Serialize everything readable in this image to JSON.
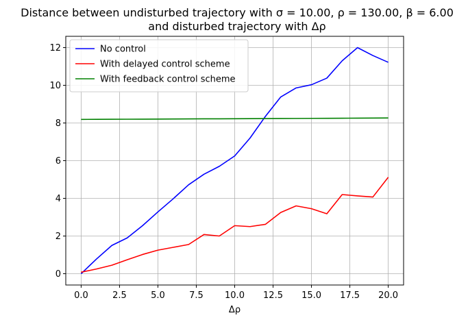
{
  "chart_data": {
    "type": "line",
    "title": "Distance between undisturbed trajectory with σ = 10.00, ρ = 130.00, β = 6.00",
    "subtitle": "and disturbed trajectory with Δρ",
    "xlabel": "Δρ",
    "ylabel": "",
    "xlim": [
      -1.0,
      21.0
    ],
    "ylim": [
      -0.6,
      12.6
    ],
    "xticks": [
      0.0,
      2.5,
      5.0,
      7.5,
      10.0,
      12.5,
      15.0,
      17.5,
      20.0
    ],
    "xtick_labels": [
      "0.0",
      "2.5",
      "5.0",
      "7.5",
      "10.0",
      "12.5",
      "15.0",
      "17.5",
      "20.0"
    ],
    "yticks": [
      0,
      2,
      4,
      6,
      8,
      10,
      12
    ],
    "ytick_labels": [
      "0",
      "2",
      "4",
      "6",
      "8",
      "10",
      "12"
    ],
    "grid": true,
    "legend_position": "top-left",
    "x": [
      0,
      1,
      2,
      3,
      4,
      5,
      6,
      7,
      8,
      9,
      10,
      11,
      12,
      13,
      14,
      15,
      16,
      17,
      18,
      19,
      20
    ],
    "series": [
      {
        "name": "No control",
        "color": "#0000ff",
        "values": [
          0.0,
          0.78,
          1.5,
          1.9,
          2.55,
          3.28,
          3.98,
          4.72,
          5.28,
          5.7,
          6.25,
          7.2,
          8.35,
          9.38,
          9.86,
          10.03,
          10.38,
          11.3,
          12.0,
          11.58,
          11.22
        ]
      },
      {
        "name": "With delayed control scheme",
        "color": "#ff0000",
        "values": [
          0.08,
          0.25,
          0.45,
          0.74,
          1.02,
          1.25,
          1.4,
          1.55,
          2.08,
          2.0,
          2.55,
          2.5,
          2.62,
          3.25,
          3.6,
          3.45,
          3.18,
          4.2,
          4.13,
          4.07,
          5.12
        ]
      },
      {
        "name": "With feedback control scheme",
        "color": "#008000",
        "values": [
          8.19,
          8.193,
          8.197,
          8.2,
          8.204,
          8.207,
          8.211,
          8.215,
          8.219,
          8.222,
          8.226,
          8.23,
          8.234,
          8.237,
          8.241,
          8.245,
          8.249,
          8.253,
          8.257,
          8.261,
          8.265
        ]
      }
    ]
  }
}
